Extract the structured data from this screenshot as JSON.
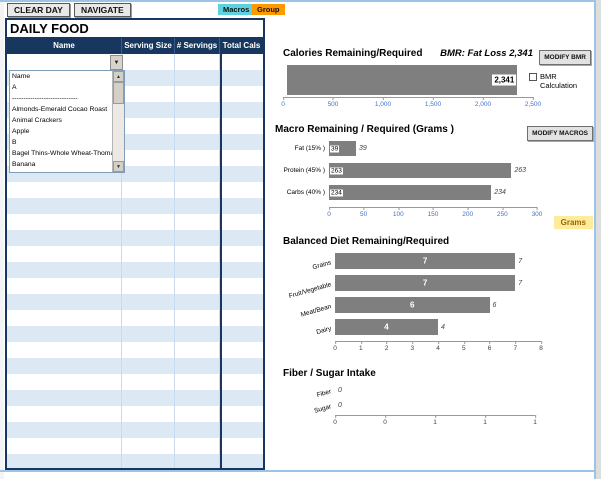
{
  "toolbar": {
    "clear_day_label": "CLEAR DAY",
    "navigate_label": "NAVIGATE",
    "macros_tag": "Macros",
    "group_tag": "Group"
  },
  "food_table": {
    "title": "DAILY FOOD",
    "columns": [
      "Name",
      "Serving Size",
      "# Servings",
      "Total Cals"
    ],
    "dropdown_items": [
      "Name",
      "A",
      "-----------------------------",
      "Almonds-Emerald Cocao Roast",
      "Animal Crackers",
      "Apple",
      "B",
      "Bagel Thins-Whole Wheat-Thoma",
      "Banana"
    ]
  },
  "controls": {
    "modify_bmr_label": "MODIFY BMR",
    "bmr_checkbox_label": "BMR Calculation",
    "modify_macros_label": "MODIFY MACROS",
    "grams_label": "Grams"
  },
  "colors": {
    "header_navy": "#17375E",
    "row_band_blue": "#DCE9F5",
    "bar_gray": "#7F7F7F",
    "tick_blue": "#4472C4",
    "macros_tag_bg": "#5FD2DF",
    "group_tag_bg": "#FF9900",
    "grams_bg": "#FFEB9C"
  },
  "chart_data": [
    {
      "id": "chart-calories",
      "type": "bar",
      "orientation": "horizontal",
      "title": "Calories Remaining/Required",
      "subtitle": "BMR: Fat Loss 2,341",
      "categories": [
        ""
      ],
      "values": [
        2341
      ],
      "value_labels": [
        "2,341"
      ],
      "xlim": [
        0,
        2500
      ],
      "ticks": [
        "0",
        "500",
        "1,000",
        "1,500",
        "2,000",
        "2,500"
      ],
      "tick_color": "#4472C4",
      "bar_color": "#7F7F7F",
      "value_style": "inside-end-box",
      "outside_labels": false
    },
    {
      "id": "chart-macros",
      "type": "bar",
      "orientation": "horizontal",
      "title": "Macro Remaining / Required (Grams )",
      "categories": [
        "Fat (15% )",
        "Protein (45% )",
        "Carbs (40% )"
      ],
      "values": [
        39,
        263,
        234
      ],
      "value_labels": [
        "39",
        "263",
        "234"
      ],
      "xlim": [
        0,
        300
      ],
      "ticks": [
        "0",
        "50",
        "100",
        "150",
        "200",
        "250",
        "300"
      ],
      "tick_color": "#4472C4",
      "bar_color": "#7F7F7F",
      "value_style": "inside-base-box",
      "outside_labels": true
    },
    {
      "id": "chart-balanced",
      "type": "bar",
      "orientation": "horizontal",
      "title": "Balanced Diet Remaining/Required",
      "categories": [
        "Grains",
        "Fruit/Vegetable",
        "Meat/Bean",
        "Dairy"
      ],
      "values": [
        7,
        7,
        6,
        4
      ],
      "value_labels": [
        "7",
        "7",
        "6",
        "4"
      ],
      "xlim": [
        0,
        8
      ],
      "ticks": [
        "0",
        "1",
        "2",
        "3",
        "4",
        "5",
        "6",
        "7",
        "8"
      ],
      "tick_color": "#404040",
      "bar_color": "#7F7F7F",
      "value_style": "center-white",
      "outside_labels": true
    },
    {
      "id": "chart-fiber",
      "type": "bar",
      "orientation": "horizontal",
      "title": "Fiber / Sugar Intake",
      "categories": [
        "Fiber",
        "Sugar"
      ],
      "values": [
        0,
        0
      ],
      "value_labels": [
        "0",
        "0"
      ],
      "xlim": [
        0,
        1
      ],
      "ticks": [
        "0",
        "0",
        "1",
        "1",
        "1"
      ],
      "tick_color": "#404040",
      "bar_color": "#7F7F7F",
      "value_style": "none",
      "outside_labels": true
    }
  ]
}
